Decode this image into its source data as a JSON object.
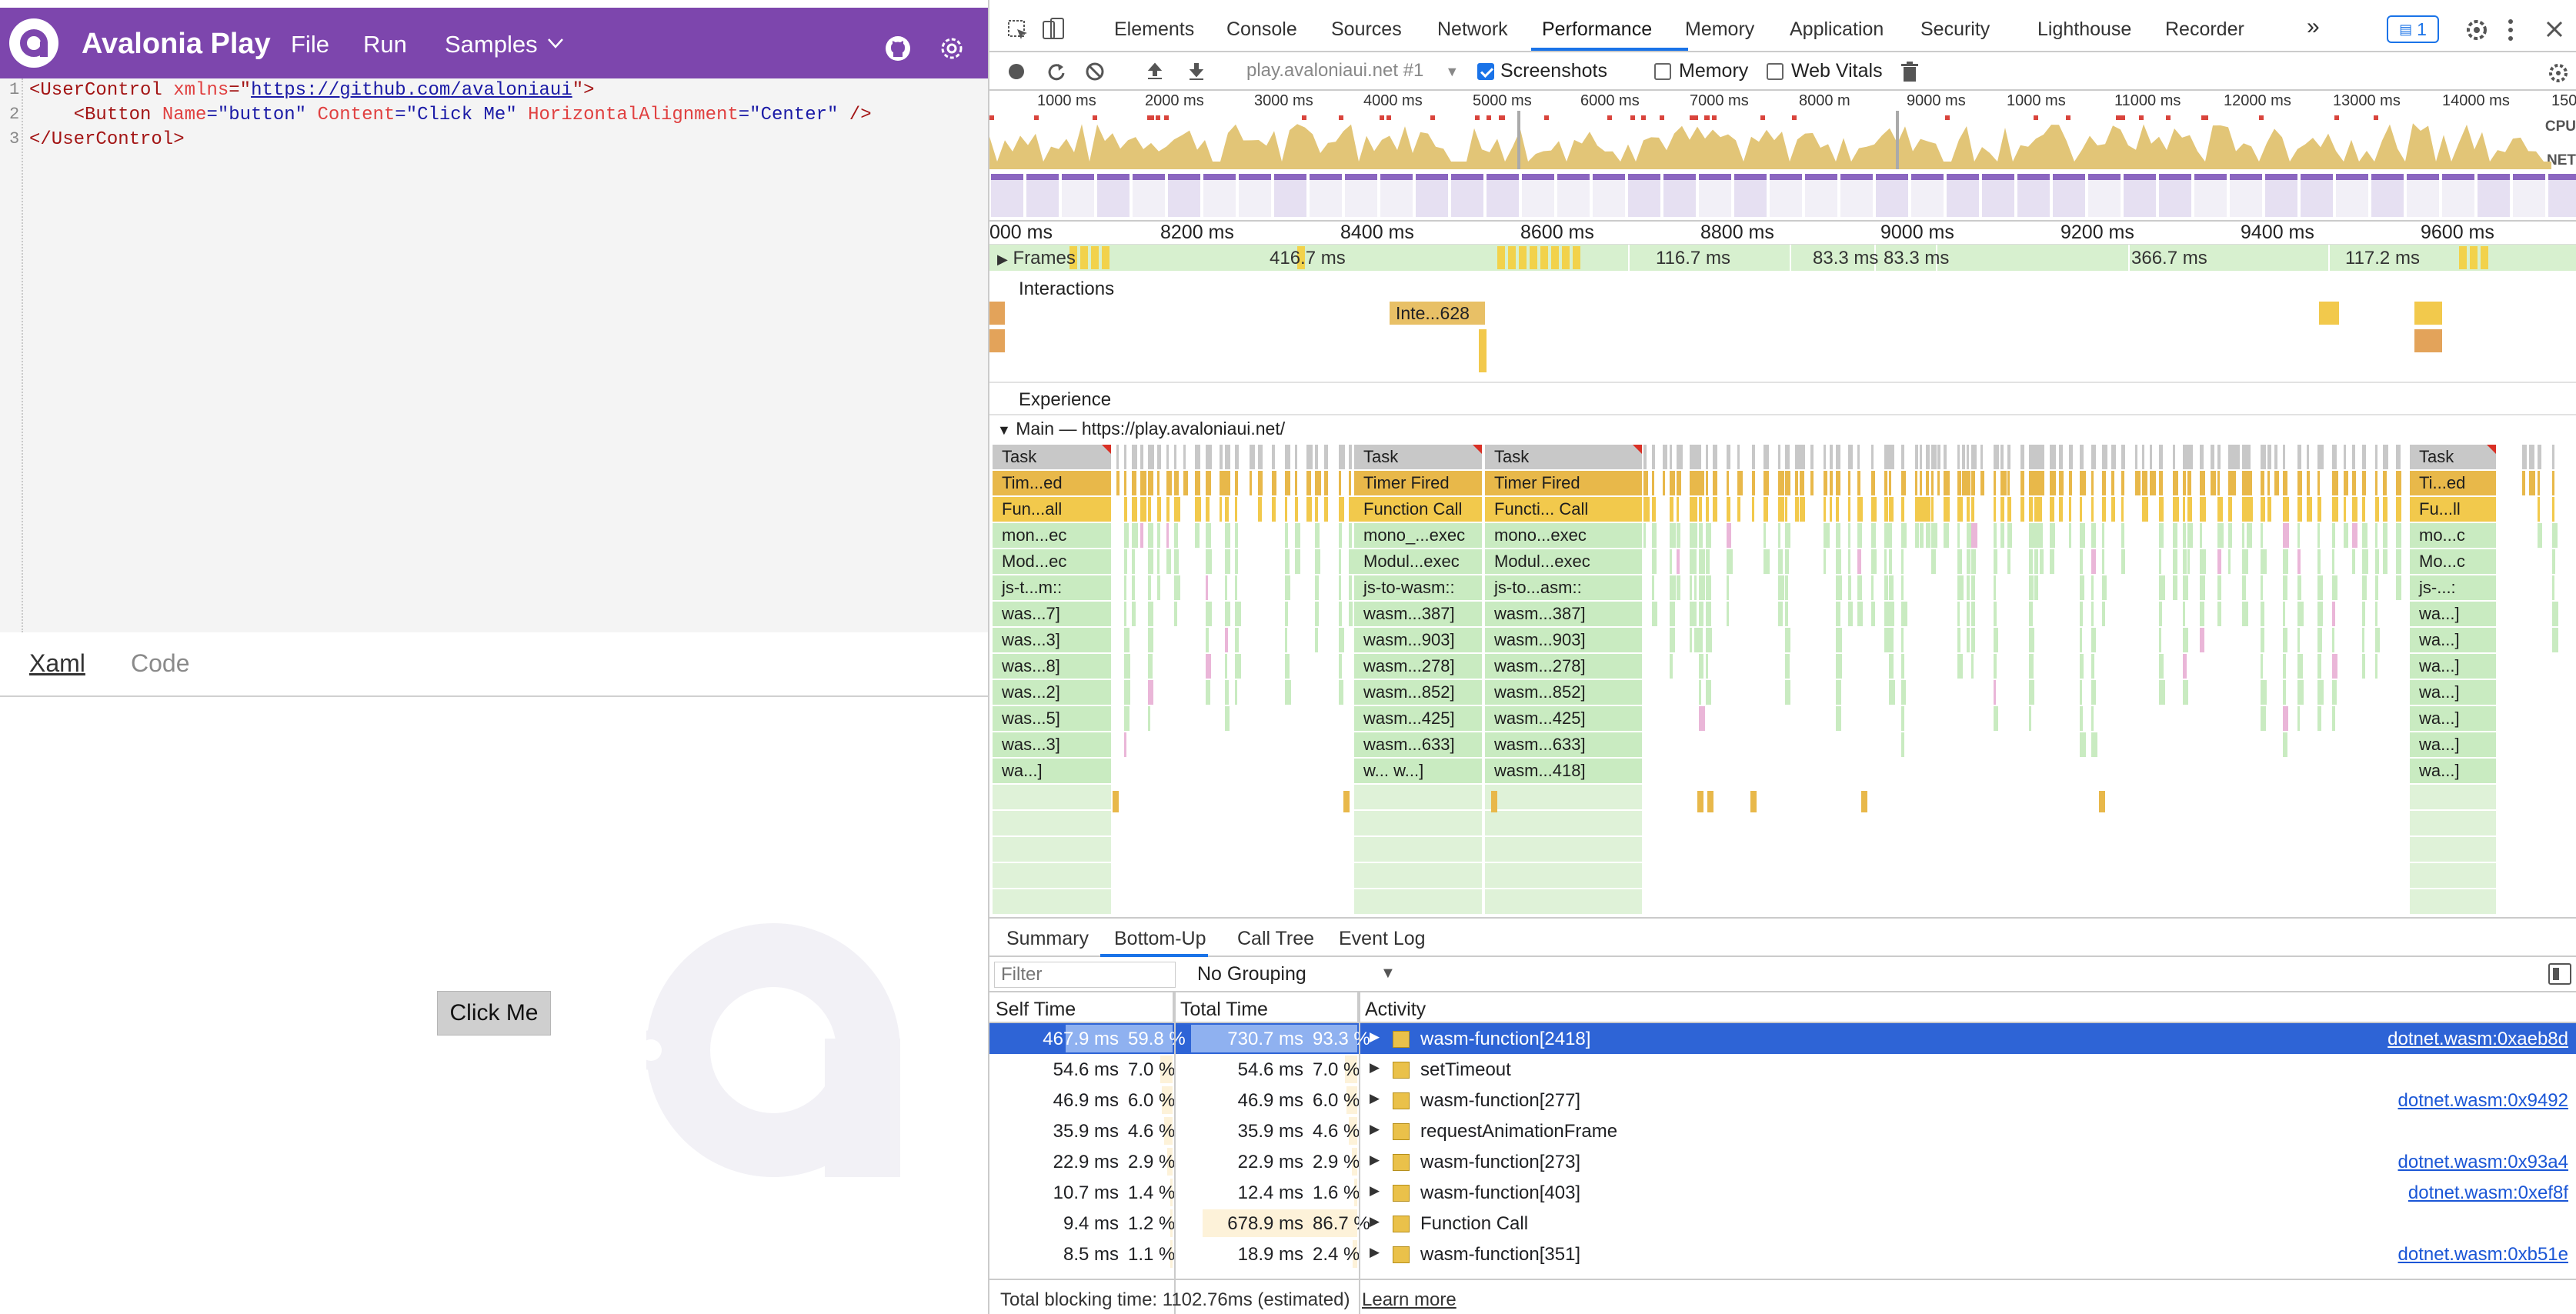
{
  "app": {
    "title": "Avalonia Play",
    "menu": [
      "File",
      "Run",
      "Samples"
    ]
  },
  "editor": {
    "lines": [
      {
        "num": "1",
        "p1": "<UserControl ",
        "p2": "xmlns",
        "p3": "=\"",
        "p4": "https://github.com/avaloniaui",
        "p5": "\">"
      },
      {
        "num": "2",
        "p1": "    <Button ",
        "p2": "Name",
        "p3": "=\"button\" ",
        "p4": "Content",
        "p5": "=\"Click Me\" ",
        "p6": "HorizontalAlignment",
        "p7": "=\"Center\"",
        "p8": " />"
      },
      {
        "num": "3",
        "p1": "</UserControl>"
      }
    ]
  },
  "left_tabs": {
    "xaml": "Xaml",
    "code": "Code"
  },
  "preview": {
    "button": "Click Me"
  },
  "devtools": {
    "tabs": [
      "Elements",
      "Console",
      "Sources",
      "Network",
      "Performance",
      "Memory",
      "Application",
      "Security",
      "Lighthouse",
      "Recorder"
    ],
    "active_tab": "Performance",
    "more": "»",
    "issues_count": "1",
    "toolbar": {
      "recording": "play.avaloniaui.net #1",
      "screenshots": "Screenshots",
      "memory": "Memory",
      "web_vitals": "Web Vitals"
    },
    "overview": {
      "ticks": [
        "1000 ms",
        "2000 ms",
        "3000 ms",
        "4000 ms",
        "5000 ms",
        "6000 ms",
        "7000 ms",
        "8000 m",
        "9000 ms",
        "1000 ms",
        "11000 ms",
        "12000 ms",
        "13000 ms",
        "14000 ms",
        "150"
      ],
      "cpu_label": "CPU",
      "net_label": "NET"
    },
    "ruler": [
      "000 ms",
      "8200 ms",
      "8400 ms",
      "8600 ms",
      "8800 ms",
      "9000 ms",
      "9200 ms",
      "9400 ms",
      "9600 ms"
    ],
    "frames": {
      "label": "Frames",
      "durations": [
        "416.7 ms",
        "116.7 ms",
        "83.3 ms",
        "83.3 ms",
        "366.7 ms",
        "117.2 ms"
      ]
    },
    "interactions": {
      "label": "Interactions",
      "item": "Inte...628"
    },
    "experience_label": "Experience",
    "main_label": "Main — https://play.avaloniaui.net/",
    "flame": {
      "col1": [
        "Task",
        "Tim...ed",
        "Fun...all",
        "mon...ec",
        "Mod...ec",
        "js-t...m::",
        "was...7]",
        "was...3]",
        "was...8]",
        "was...2]",
        "was...5]",
        "was...3]",
        "wa...]"
      ],
      "col2": [
        "Task",
        "Timer Fired",
        "Function Call",
        "mono_...exec",
        "Modul...exec",
        "js-to-wasm::",
        "wasm...387]",
        "wasm...903]",
        "wasm...278]",
        "wasm...852]",
        "wasm...425]",
        "wasm...633]",
        "w...     w...]"
      ],
      "col3": [
        "Task",
        "Timer Fired",
        "Functi... Call",
        "mono...exec",
        "Modul...exec",
        "js-to...asm::",
        "wasm...387]",
        "wasm...903]",
        "wasm...278]",
        "wasm...852]",
        "wasm...425]",
        "wasm...633]",
        "wasm...418]"
      ],
      "col4": [
        "Task",
        "Ti...ed",
        "Fu...ll",
        "mo...c",
        "Mo...c",
        "js-...:",
        "wa...]",
        "wa...]",
        "wa...]",
        "wa...]",
        "wa...]",
        "wa...]",
        "wa...]"
      ]
    },
    "bottom_tabs": [
      "Summary",
      "Bottom-Up",
      "Call Tree",
      "Event Log"
    ],
    "active_bottom_tab": "Bottom-Up",
    "filter_placeholder": "Filter",
    "grouping": "No Grouping",
    "columns": [
      "Self Time",
      "Total Time",
      "Activity"
    ],
    "rows": [
      {
        "self": "467.9 ms",
        "self_pct": "59.8 %",
        "total": "730.7 ms",
        "total_pct": "93.3 %",
        "activity": "wasm-function[2418]",
        "link": "dotnet.wasm:0xaeb8d",
        "selected": true
      },
      {
        "self": "54.6 ms",
        "self_pct": "7.0 %",
        "total": "54.6 ms",
        "total_pct": "7.0 %",
        "activity": "setTimeout",
        "link": ""
      },
      {
        "self": "46.9 ms",
        "self_pct": "6.0 %",
        "total": "46.9 ms",
        "total_pct": "6.0 %",
        "activity": "wasm-function[277]",
        "link": "dotnet.wasm:0x9492"
      },
      {
        "self": "35.9 ms",
        "self_pct": "4.6 %",
        "total": "35.9 ms",
        "total_pct": "4.6 %",
        "activity": "requestAnimationFrame",
        "link": ""
      },
      {
        "self": "22.9 ms",
        "self_pct": "2.9 %",
        "total": "22.9 ms",
        "total_pct": "2.9 %",
        "activity": "wasm-function[273]",
        "link": "dotnet.wasm:0x93a4"
      },
      {
        "self": "10.7 ms",
        "self_pct": "1.4 %",
        "total": "12.4 ms",
        "total_pct": "1.6 %",
        "activity": "wasm-function[403]",
        "link": "dotnet.wasm:0xef8f"
      },
      {
        "self": "9.4 ms",
        "self_pct": "1.2 %",
        "total": "678.9 ms",
        "total_pct": "86.7 %",
        "activity": "Function Call",
        "link": ""
      },
      {
        "self": "8.5 ms",
        "self_pct": "1.1 %",
        "total": "18.9 ms",
        "total_pct": "2.4 %",
        "activity": "wasm-function[351]",
        "link": "dotnet.wasm:0xb51e"
      }
    ],
    "status": "Total blocking time: 1102.76ms (estimated)",
    "learn_more": "Learn more",
    "colors": {
      "accent": "#1a73e8",
      "purple": "#7d46ad",
      "task": "#c8c8c8",
      "timer": "#e8b84a",
      "script": "#f2c94c",
      "wasm": "#c9ebc1",
      "selected_row": "#2e64d6"
    }
  }
}
